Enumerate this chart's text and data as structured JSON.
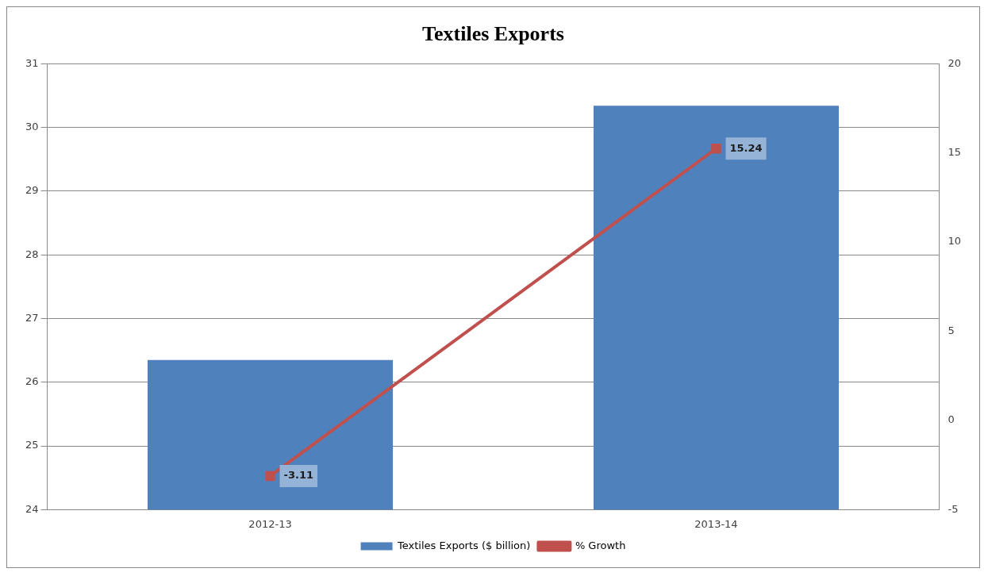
{
  "chart_data": {
    "type": "bar",
    "title": "Textiles Exports",
    "categories": [
      "2012-13",
      "2013-14"
    ],
    "series": [
      {
        "name": "Textiles Exports ($ billion)",
        "color": "#4f81bd",
        "values": [
          26.35,
          30.34
        ]
      },
      {
        "name": "% Growth",
        "type": "line",
        "axis": "y2",
        "color": "#c0504d",
        "values": [
          -3.11,
          15.24
        ],
        "value_labels": [
          "-3.11",
          "15.24"
        ],
        "marker": "square"
      }
    ],
    "ylim": [
      24,
      31
    ],
    "yticks": [
      24,
      25,
      26,
      27,
      28,
      29,
      30,
      31
    ],
    "y2lim": [
      -5,
      20
    ],
    "y2ticks": [
      -5,
      0,
      5,
      10,
      15,
      20
    ],
    "grid": "y",
    "legend": "bottom"
  }
}
